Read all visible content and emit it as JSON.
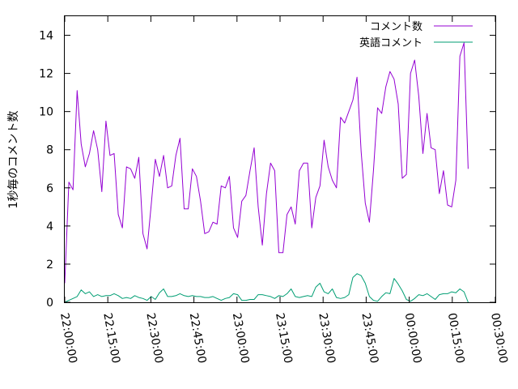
{
  "chart_data": {
    "type": "line",
    "title": "",
    "ylabel": "1秒毎のコメント数",
    "xlabel": "",
    "x_ticks": [
      "22:00:00",
      "22:15:00",
      "22:30:00",
      "22:45:00",
      "23:00:00",
      "23:15:00",
      "23:30:00",
      "23:45:00",
      "00:00:00",
      "00:15:00",
      "00:30:00"
    ],
    "y_ticks": [
      "0",
      "2",
      "4",
      "6",
      "8",
      "10",
      "12",
      "14"
    ],
    "ylim": [
      0,
      15
    ],
    "xlim_minutes": [
      0,
      150
    ],
    "x_minute_step": 1.434,
    "grid": false,
    "legend_position": "top-right",
    "series": [
      {
        "name": "コメント数",
        "color": "#9400d3",
        "values": [
          1.0,
          6.3,
          5.9,
          11.1,
          8.3,
          7.1,
          7.8,
          9.0,
          8.0,
          5.8,
          9.5,
          7.7,
          7.8,
          4.6,
          3.9,
          7.1,
          7.0,
          6.5,
          7.6,
          3.6,
          2.8,
          5.1,
          7.5,
          6.6,
          7.7,
          6.0,
          6.1,
          7.7,
          8.6,
          4.9,
          4.9,
          7.0,
          6.6,
          5.3,
          3.6,
          3.7,
          4.2,
          4.1,
          6.1,
          6.0,
          6.6,
          3.9,
          3.4,
          5.3,
          5.6,
          6.9,
          8.1,
          5.0,
          3.0,
          5.7,
          7.3,
          6.9,
          2.6,
          2.6,
          4.6,
          5.0,
          4.1,
          6.9,
          7.3,
          7.3,
          3.9,
          5.5,
          6.1,
          8.5,
          7.1,
          6.4,
          6.0,
          9.7,
          9.4,
          10.0,
          10.6,
          11.8,
          7.9,
          5.2,
          4.2,
          6.9,
          10.2,
          9.9,
          11.3,
          12.1,
          11.7,
          10.4,
          6.5,
          6.7,
          12.0,
          12.7,
          10.8,
          7.8,
          9.9,
          8.1,
          8.0,
          5.7,
          6.9,
          5.1,
          5.0,
          6.4,
          12.9,
          13.6,
          7.0
        ]
      },
      {
        "name": "英語コメント",
        "color": "#009e73",
        "values": [
          0.0,
          0.1,
          0.2,
          0.3,
          0.65,
          0.45,
          0.55,
          0.3,
          0.4,
          0.3,
          0.35,
          0.35,
          0.45,
          0.35,
          0.2,
          0.25,
          0.2,
          0.35,
          0.25,
          0.2,
          0.1,
          0.3,
          0.15,
          0.5,
          0.7,
          0.3,
          0.3,
          0.35,
          0.45,
          0.35,
          0.3,
          0.35,
          0.3,
          0.3,
          0.25,
          0.25,
          0.3,
          0.2,
          0.1,
          0.2,
          0.25,
          0.45,
          0.4,
          0.1,
          0.1,
          0.15,
          0.15,
          0.4,
          0.4,
          0.35,
          0.3,
          0.2,
          0.35,
          0.3,
          0.45,
          0.7,
          0.3,
          0.25,
          0.3,
          0.35,
          0.3,
          0.8,
          1.0,
          0.55,
          0.45,
          0.7,
          0.25,
          0.2,
          0.25,
          0.4,
          1.3,
          1.5,
          1.4,
          1.0,
          0.3,
          0.1,
          0.05,
          0.3,
          0.5,
          0.45,
          1.25,
          0.95,
          0.6,
          0.15,
          0.05,
          0.2,
          0.4,
          0.35,
          0.45,
          0.3,
          0.15,
          0.4,
          0.45,
          0.45,
          0.55,
          0.5,
          0.7,
          0.55,
          0.0
        ]
      }
    ]
  }
}
